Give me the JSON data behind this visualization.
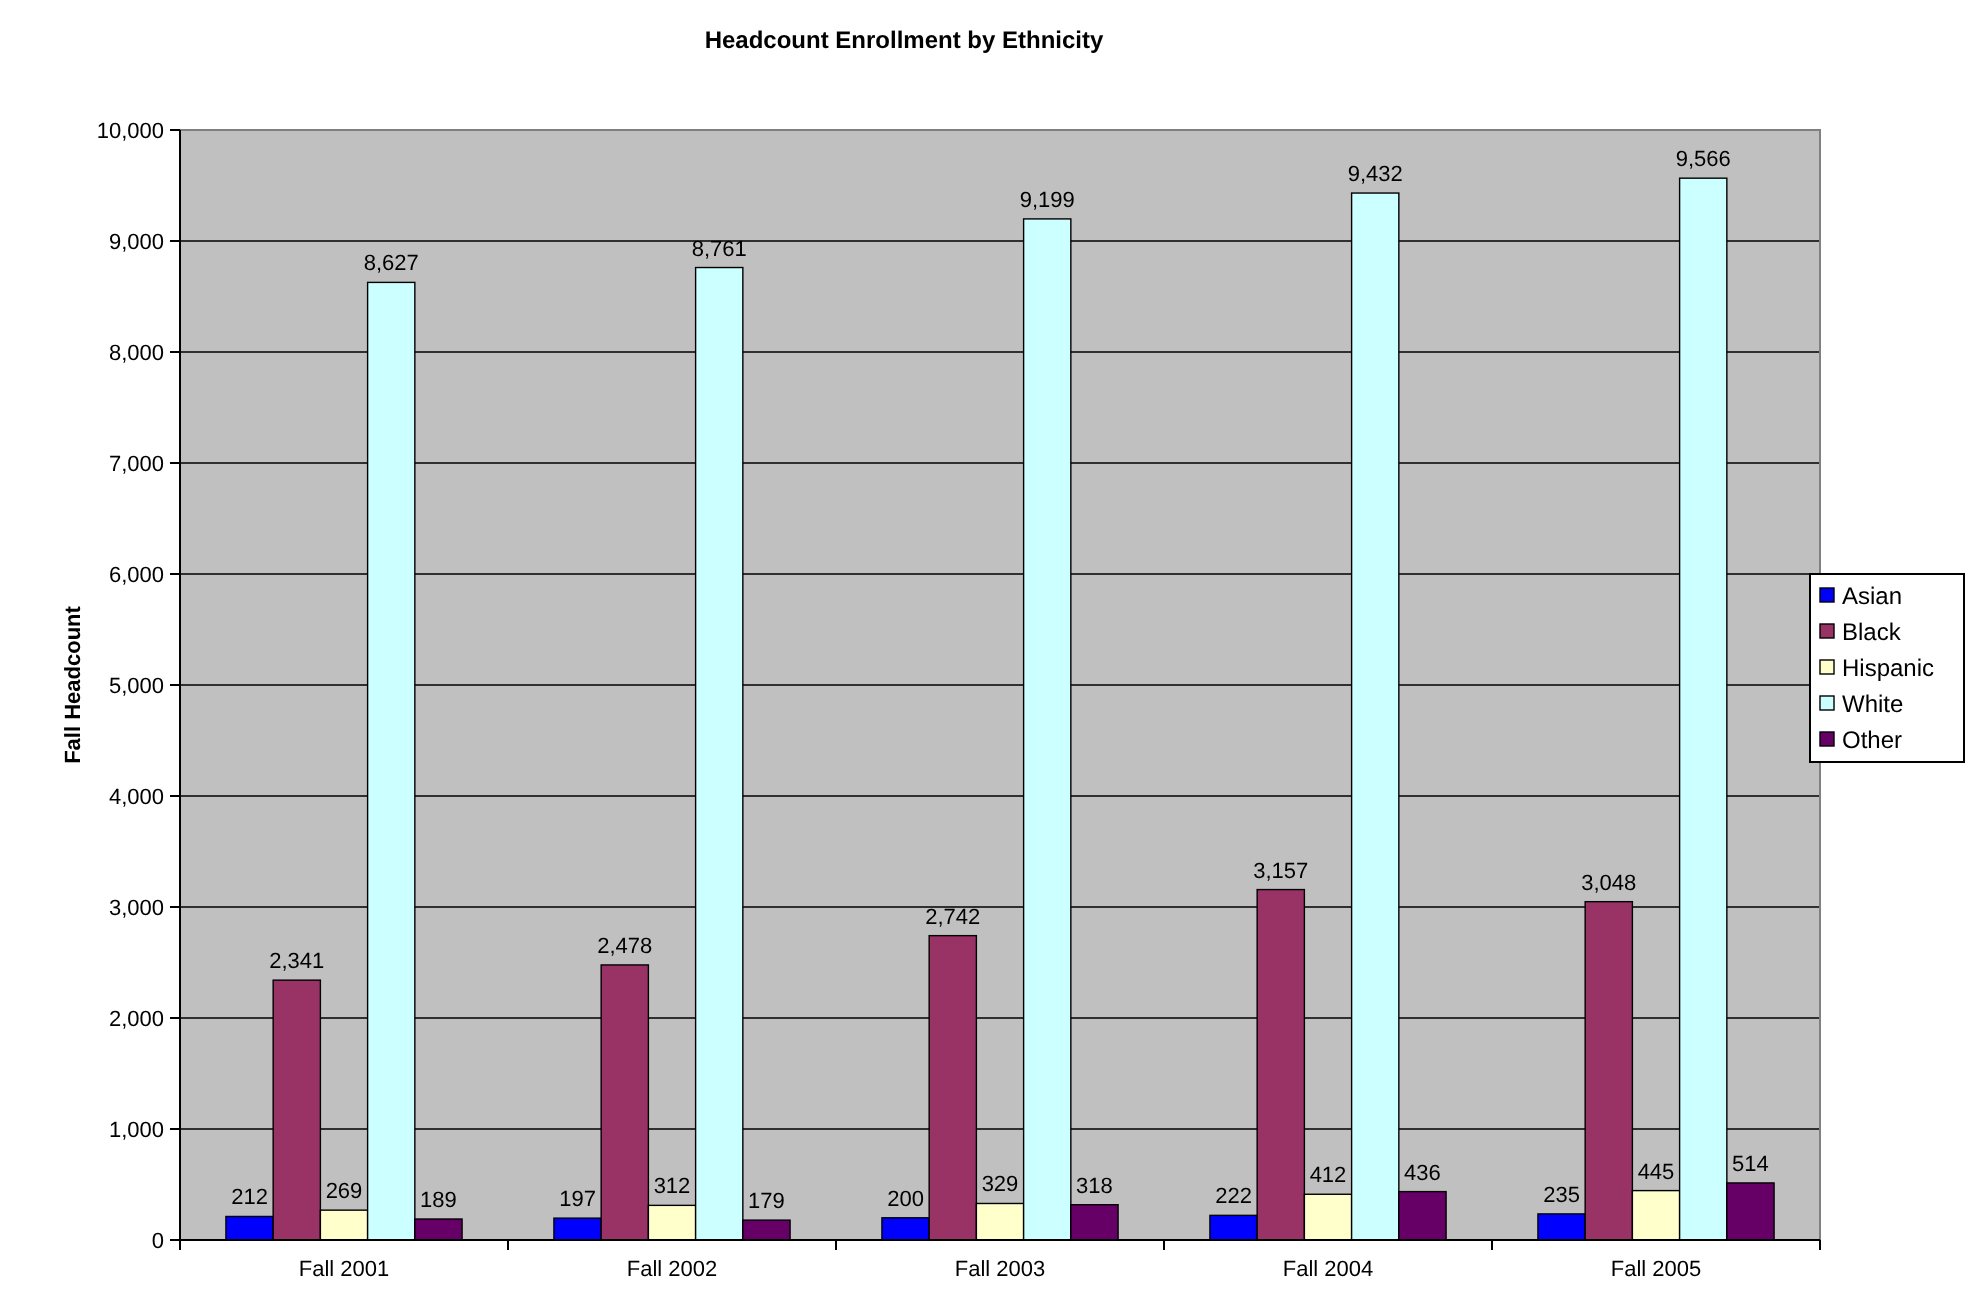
{
  "chart_data": {
    "type": "bar",
    "title": "Headcount Enrollment by Ethnicity",
    "ylabel": "Fall Headcount",
    "categories": [
      "Fall 2001",
      "Fall 2002",
      "Fall 2003",
      "Fall 2004",
      "Fall 2005"
    ],
    "series": [
      {
        "name": "Asian",
        "color": "#0000ff",
        "values": [
          212,
          197,
          200,
          222,
          235
        ],
        "value_labels": [
          "212",
          "197",
          "200",
          "222",
          "235"
        ]
      },
      {
        "name": "Black",
        "color": "#993366",
        "values": [
          2341,
          2478,
          2742,
          3157,
          3048
        ],
        "value_labels": [
          "2,341",
          "2,478",
          "2,742",
          "3,157",
          "3,048"
        ]
      },
      {
        "name": "Hispanic",
        "color": "#ffffcc",
        "values": [
          269,
          312,
          329,
          412,
          445
        ],
        "value_labels": [
          "269",
          "312",
          "329",
          "412",
          "445"
        ]
      },
      {
        "name": "White",
        "color": "#ccffff",
        "values": [
          8627,
          8761,
          9199,
          9432,
          9566
        ],
        "value_labels": [
          "8,627",
          "8,761",
          "9,199",
          "9,432",
          "9,566"
        ]
      },
      {
        "name": "Other",
        "color": "#660066",
        "values": [
          189,
          179,
          318,
          436,
          514
        ],
        "value_labels": [
          "189",
          "179",
          "318",
          "436",
          "514"
        ]
      }
    ],
    "ylim": [
      0,
      10000
    ],
    "yticks": [
      {
        "value": 0,
        "label": "0"
      },
      {
        "value": 1000,
        "label": "1,000"
      },
      {
        "value": 2000,
        "label": "2,000"
      },
      {
        "value": 3000,
        "label": "3,000"
      },
      {
        "value": 4000,
        "label": "4,000"
      },
      {
        "value": 5000,
        "label": "5,000"
      },
      {
        "value": 6000,
        "label": "6,000"
      },
      {
        "value": 7000,
        "label": "7,000"
      },
      {
        "value": 8000,
        "label": "8,000"
      },
      {
        "value": 9000,
        "label": "9,000"
      },
      {
        "value": 10000,
        "label": "10,000"
      }
    ],
    "grid": "y",
    "legend": "right"
  }
}
